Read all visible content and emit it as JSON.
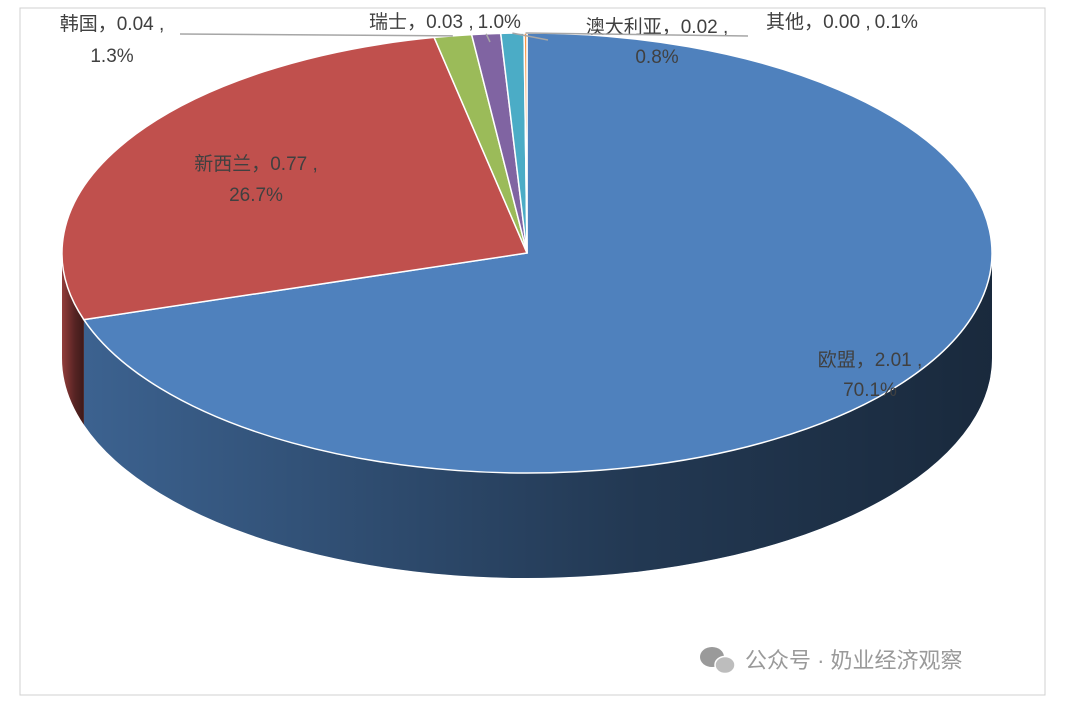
{
  "chart_data": {
    "type": "pie3d",
    "categories": [
      "欧盟",
      "新西兰",
      "韩国",
      "瑞士",
      "澳大利亚",
      "其他"
    ],
    "values": [
      2.01,
      0.77,
      0.04,
      0.03,
      0.02,
      0.0
    ],
    "value_labels": [
      "2.01",
      "0.77",
      "0.04",
      "0.03",
      "0.02",
      "0.00"
    ],
    "percents": [
      70.1,
      26.7,
      1.3,
      1.0,
      0.8,
      0.1
    ],
    "percent_labels": [
      "70.1%",
      "26.7%",
      "1.3%",
      "1.0%",
      "0.8%",
      "0.1%"
    ],
    "label_separators": [
      "，",
      " ,"
    ],
    "colors": [
      "#4f81bd",
      "#c0504d",
      "#9bbb59",
      "#8064a2",
      "#4bacc6",
      "#f79646"
    ]
  },
  "watermark": "公众号 · 奶业经济观察"
}
